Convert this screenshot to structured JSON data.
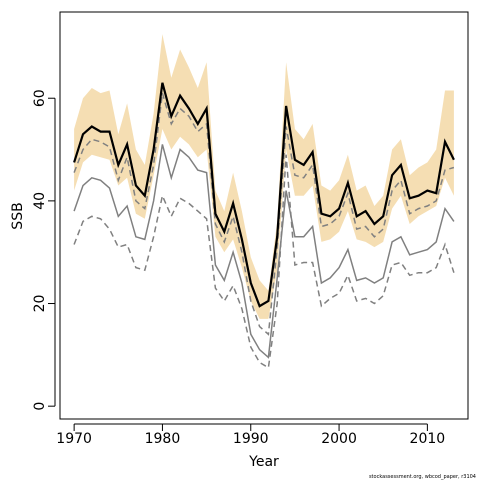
{
  "chart_data": {
    "type": "line",
    "xlabel": "Year",
    "ylabel": "SSB",
    "xlim": [
      1968.4,
      2014.6
    ],
    "ylim": [
      -2.5,
      76.8
    ],
    "x_ticks": [
      "1970",
      "1980",
      "1990",
      "2000",
      "2010"
    ],
    "x_tick_values": [
      1970,
      1980,
      1990,
      2000,
      2010
    ],
    "y_ticks": [
      "0",
      "20",
      "40",
      "60"
    ],
    "y_tick_values": [
      0,
      20,
      40,
      60
    ],
    "grid": false,
    "credit": "stockassessment.org, wbcod_paper, r3104",
    "colors": {
      "band": "#f5deb3",
      "estimate": "#000000",
      "other": "#808080"
    },
    "x": [
      1970,
      1971,
      1972,
      1973,
      1974,
      1975,
      1976,
      1977,
      1978,
      1979,
      1980,
      1981,
      1982,
      1983,
      1984,
      1985,
      1986,
      1987,
      1988,
      1989,
      1990,
      1991,
      1992,
      1993,
      1994,
      1995,
      1996,
      1997,
      1998,
      1999,
      2000,
      2001,
      2002,
      2003,
      2004,
      2005,
      2006,
      2007,
      2008,
      2009,
      2010,
      2011,
      2012,
      2013
    ],
    "series": [
      {
        "role": "band_upper",
        "style": "fill",
        "values": [
          54,
          60,
          62,
          61,
          61.5,
          53,
          59,
          50,
          47,
          57,
          72.5,
          64,
          69.5,
          66,
          62,
          67,
          42,
          38,
          45.5,
          38,
          29,
          24.5,
          22.5,
          36,
          67,
          54,
          52,
          55,
          43,
          42,
          44,
          49,
          42,
          43,
          39,
          41,
          50,
          52,
          45,
          46.5,
          47.5,
          50,
          61.5,
          61.5
        ]
      },
      {
        "role": "band_lower",
        "style": "fill",
        "values": [
          42,
          47.5,
          49,
          48.5,
          48,
          43,
          44.5,
          37.5,
          36.5,
          45,
          54,
          50,
          52.5,
          51,
          48.5,
          50,
          33,
          30,
          32.5,
          27,
          20.5,
          17,
          17,
          26.5,
          50,
          41,
          41,
          43,
          32,
          32.5,
          34,
          38,
          32.5,
          32,
          31,
          32,
          38.5,
          41,
          35.5,
          37,
          38,
          39,
          44.5,
          41
        ]
      },
      {
        "role": "estimate",
        "style": "solid",
        "values": [
          47.5,
          53,
          54.5,
          53.5,
          53.5,
          47,
          51,
          43,
          41,
          50,
          63,
          56.5,
          60.5,
          58,
          55,
          58,
          37.5,
          34,
          39.5,
          32.5,
          24,
          19.5,
          20.5,
          33,
          58.5,
          48,
          47,
          49.5,
          37.5,
          37,
          38.5,
          43.5,
          37,
          38,
          35.5,
          37,
          45,
          47,
          40.5,
          41,
          42,
          41.5,
          51.5,
          48
        ]
      },
      {
        "role": "comparison",
        "style": "dashed",
        "values": [
          45.5,
          50,
          52,
          51.5,
          50.5,
          44,
          48.5,
          40,
          38.5,
          47,
          61,
          55,
          58,
          56.5,
          53.5,
          55,
          35.5,
          32,
          37,
          30,
          20.5,
          15.5,
          14,
          31,
          54.5,
          45,
          44.5,
          47,
          35,
          35.5,
          37,
          41.5,
          34.5,
          35,
          33,
          34.5,
          42,
          44,
          37.5,
          38.5,
          39,
          40,
          46,
          46.5
        ]
      },
      {
        "role": "comparison",
        "style": "solid",
        "values": [
          38,
          43,
          44.5,
          44,
          42.5,
          37,
          39,
          33,
          32.5,
          40,
          51,
          44.5,
          50,
          48.5,
          46,
          45.5,
          27.5,
          24.5,
          30,
          24,
          14,
          11,
          9.5,
          25,
          42,
          33,
          33,
          35,
          24,
          25,
          27,
          30.5,
          24.5,
          25,
          24,
          25,
          32,
          33,
          29.5,
          30,
          30.5,
          32,
          38.5,
          36
        ]
      },
      {
        "role": "comparison",
        "style": "dashed",
        "values": [
          31.5,
          36,
          37,
          36.5,
          34.5,
          31,
          31.5,
          27,
          26.5,
          33,
          41,
          37,
          40.5,
          39.5,
          38,
          36.5,
          23,
          20.5,
          23.5,
          19,
          11.5,
          8.5,
          7.5,
          20,
          49,
          27.5,
          28,
          28,
          19.5,
          21,
          22,
          25.5,
          20.5,
          21,
          20,
          21.5,
          27.5,
          28,
          25.5,
          26,
          26,
          27,
          31.5,
          26
        ]
      }
    ]
  }
}
